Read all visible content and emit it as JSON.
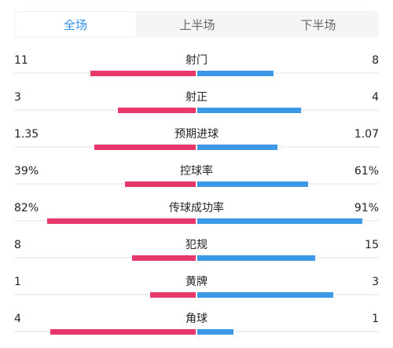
{
  "tabs": [
    {
      "label": "全场",
      "active": true
    },
    {
      "label": "上半场",
      "active": false
    },
    {
      "label": "下半场",
      "active": false
    }
  ],
  "colors": {
    "home": "#e8376b",
    "away": "#3d99e8",
    "tab_active": "#2f8ff0"
  },
  "stats": [
    {
      "label": "射门",
      "home": "11",
      "away": "8",
      "home_ratio": 0.58,
      "away_ratio": 0.42
    },
    {
      "label": "射正",
      "home": "3",
      "away": "4",
      "home_ratio": 0.43,
      "away_ratio": 0.57
    },
    {
      "label": "预期进球",
      "home": "1.35",
      "away": "1.07",
      "home_ratio": 0.56,
      "away_ratio": 0.44
    },
    {
      "label": "控球率",
      "home": "39%",
      "away": "61%",
      "home_ratio": 0.39,
      "away_ratio": 0.61
    },
    {
      "label": "传球成功率",
      "home": "82%",
      "away": "91%",
      "home_ratio": 0.82,
      "away_ratio": 0.91
    },
    {
      "label": "犯规",
      "home": "8",
      "away": "15",
      "home_ratio": 0.35,
      "away_ratio": 0.65
    },
    {
      "label": "黄牌",
      "home": "1",
      "away": "3",
      "home_ratio": 0.25,
      "away_ratio": 0.75
    },
    {
      "label": "角球",
      "home": "4",
      "away": "1",
      "home_ratio": 0.8,
      "away_ratio": 0.2
    }
  ]
}
